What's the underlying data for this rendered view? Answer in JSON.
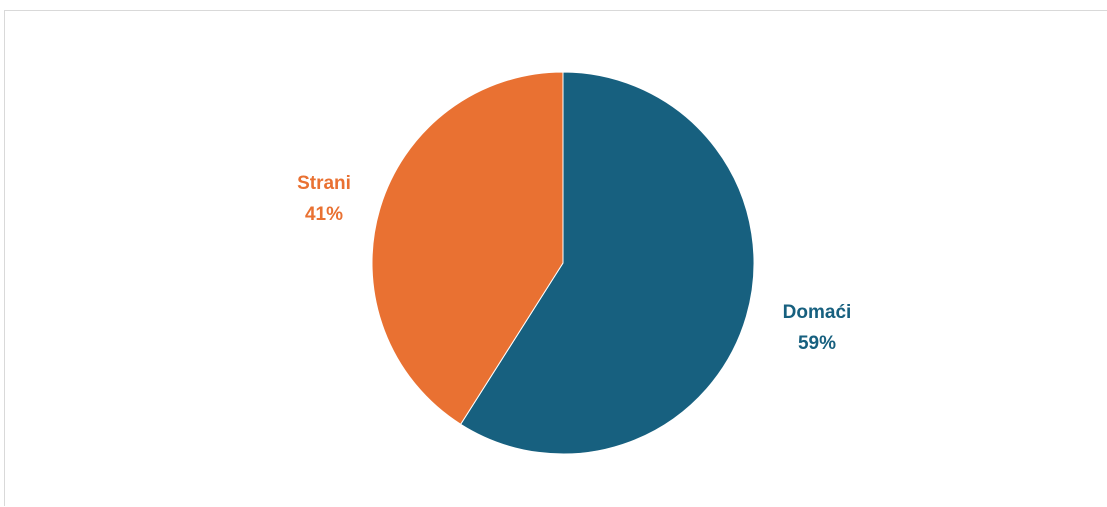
{
  "chart_data": {
    "type": "pie",
    "title": "",
    "legend": "none",
    "slices": [
      {
        "label": "Domaći",
        "value": 59,
        "value_label": "59%",
        "color": "#17607f"
      },
      {
        "label": "Strani",
        "value": 41,
        "value_label": "41%",
        "color": "#e97132"
      }
    ]
  }
}
